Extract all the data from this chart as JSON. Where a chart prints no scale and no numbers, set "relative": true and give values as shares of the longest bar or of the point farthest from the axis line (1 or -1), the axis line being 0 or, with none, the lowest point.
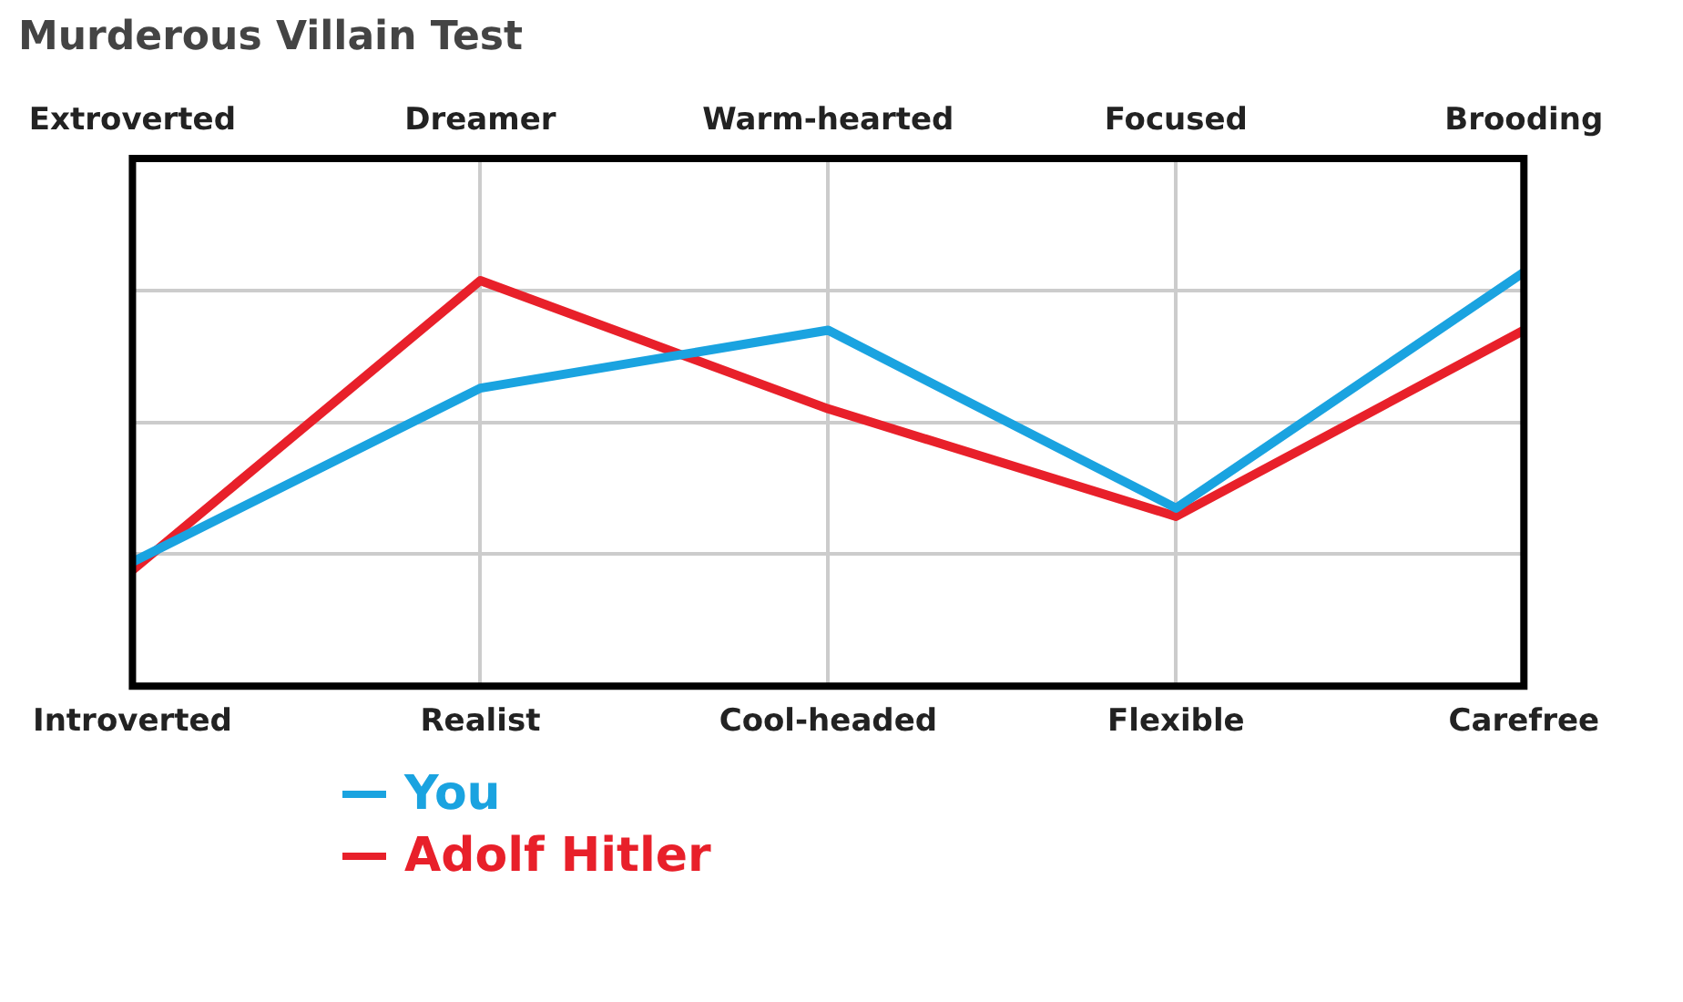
{
  "chart_data": {
    "type": "line",
    "title": "Murderous Villain Test",
    "relative": true,
    "categories": [
      "Introverted",
      "Realist",
      "Cool-headed",
      "Flexible",
      "Carefree"
    ],
    "annotations": [
      "Extroverted",
      "Dreamer",
      "Warm-hearted",
      "Focused",
      "Brooding"
    ],
    "series": [
      {
        "name": "You",
        "color": "#1aa3e0",
        "values": [
          0.3,
          0.72,
          0.86,
          0.43,
          1
        ]
      },
      {
        "name": "Adolf Hitler",
        "color": "#e8202a",
        "values": [
          0.28,
          0.98,
          0.67,
          0.41,
          0.86
        ]
      }
    ],
    "grid": true,
    "legend": "bottom left",
    "marker": "none",
    "line_style": "solid"
  }
}
